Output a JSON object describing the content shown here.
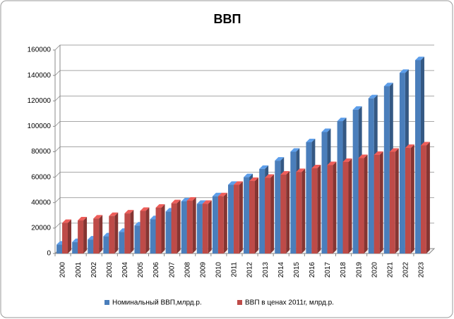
{
  "chart_data": {
    "type": "bar3d",
    "title": "ВВП",
    "categories": [
      "2000",
      "2001",
      "2002",
      "2003",
      "2004",
      "2005",
      "2006",
      "2007",
      "2008",
      "2009",
      "2010",
      "2011",
      "2012",
      "2013",
      "2014",
      "2015",
      "2016",
      "2017",
      "2018",
      "2019",
      "2020",
      "2021",
      "2022",
      "2023"
    ],
    "series": [
      {
        "name": "Номинальный ВВП,млрд.р.",
        "color": "#4a7ebb",
        "values": [
          7000,
          9000,
          11000,
          13500,
          17000,
          22000,
          27000,
          33000,
          41000,
          39000,
          45000,
          54000,
          60000,
          66500,
          73000,
          80000,
          87500,
          95500,
          104000,
          113000,
          122000,
          131500,
          142000,
          152000
        ]
      },
      {
        "name": "ВВП в ценах 2011г, млрд.р.",
        "color": "#be4b48",
        "values": [
          24000,
          26000,
          27500,
          29500,
          31500,
          33500,
          36000,
          39500,
          41500,
          39000,
          45000,
          54000,
          57000,
          59500,
          62000,
          64000,
          67000,
          69500,
          72000,
          75000,
          77500,
          80000,
          83000,
          85000
        ]
      }
    ],
    "ylim": [
      0,
      160000
    ],
    "yticks": [
      0,
      20000,
      40000,
      60000,
      80000,
      100000,
      120000,
      140000,
      160000
    ],
    "grid": true,
    "legend": "bottom"
  }
}
